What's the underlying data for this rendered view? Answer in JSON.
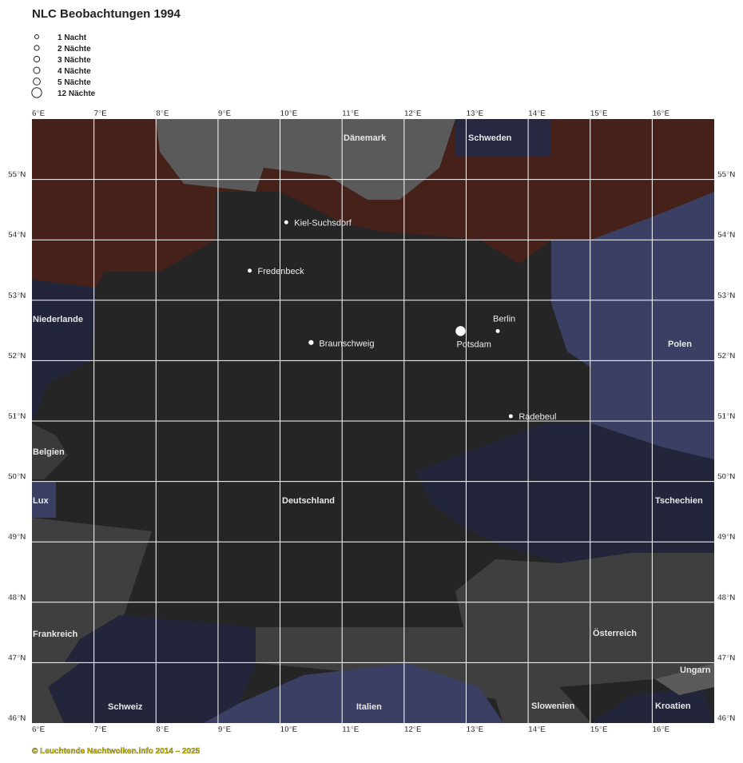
{
  "title": "NLC Beobachtungen 1994",
  "legend": [
    {
      "label": "1 Nacht",
      "nights": 1
    },
    {
      "label": "2 Nächte",
      "nights": 2
    },
    {
      "label": "3 Nächte",
      "nights": 3
    },
    {
      "label": "4 Nächte",
      "nights": 4
    },
    {
      "label": "5 Nächte",
      "nights": 5
    },
    {
      "label": "12 Nächte",
      "nights": 12
    }
  ],
  "xlim": [
    6,
    17
  ],
  "ylim": [
    46,
    56
  ],
  "xticks": [
    {
      "value": 6,
      "label": "6°E"
    },
    {
      "value": 7,
      "label": "7°E"
    },
    {
      "value": 8,
      "label": "8°E"
    },
    {
      "value": 9,
      "label": "9°E"
    },
    {
      "value": 10,
      "label": "10°E"
    },
    {
      "value": 11,
      "label": "11°E"
    },
    {
      "value": 12,
      "label": "12°E"
    },
    {
      "value": 13,
      "label": "13°E"
    },
    {
      "value": 14,
      "label": "14°E"
    },
    {
      "value": 15,
      "label": "15°E"
    },
    {
      "value": 16,
      "label": "16°E"
    }
  ],
  "yticks": [
    {
      "value": 55,
      "label": "55°N"
    },
    {
      "value": 54,
      "label": "54°N"
    },
    {
      "value": 53,
      "label": "53°N"
    },
    {
      "value": 52,
      "label": "52°N"
    },
    {
      "value": 51,
      "label": "51°N"
    },
    {
      "value": 50,
      "label": "50°N"
    },
    {
      "value": 49,
      "label": "49°N"
    },
    {
      "value": 48,
      "label": "48°N"
    },
    {
      "value": 47,
      "label": "47°N"
    },
    {
      "value": 46,
      "label": "46°N"
    }
  ],
  "countries": [
    "Dänemark",
    "Schweden",
    "Niederlande",
    "Polen",
    "Belgien",
    "Lux",
    "Deutschland",
    "Tschechien",
    "Frankreich",
    "Österreich",
    "Ungarn",
    "Schweiz",
    "Italien",
    "Slowenien",
    "Kroatien"
  ],
  "cities": [
    {
      "name": "Kiel-Suchsdorf",
      "lon": 10.1,
      "lat": 54.29,
      "nights": 1
    },
    {
      "name": "Fredenbeck",
      "lon": 9.51,
      "lat": 53.49,
      "nights": 1
    },
    {
      "name": "Braunschweig",
      "lon": 10.5,
      "lat": 52.3,
      "nights": 2
    },
    {
      "name": "Potsdam",
      "lon": 12.91,
      "lat": 52.49,
      "nights": 12
    },
    {
      "name": "Berlin",
      "lon": 13.51,
      "lat": 52.49,
      "nights": 1
    },
    {
      "name": "Radebeul",
      "lon": 13.72,
      "lat": 51.08,
      "nights": 1
    }
  ],
  "footer": "© Leuchtende Nachtwolken.info 2014 – 2025"
}
